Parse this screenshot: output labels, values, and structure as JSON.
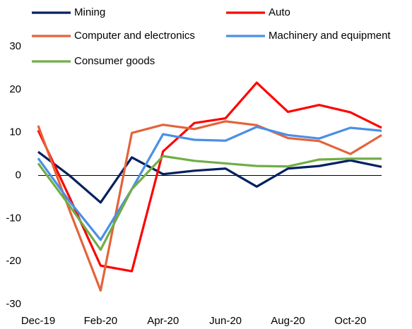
{
  "chart_data": {
    "type": "line",
    "categories": [
      "Dec-19",
      null,
      "Feb-20",
      null,
      "Apr-20",
      null,
      "Jun-20",
      null,
      "Aug-20",
      null,
      "Oct-20",
      null
    ],
    "series": [
      {
        "name": "Mining",
        "color": "#002060",
        "values": [
          5.5,
          0,
          -6.3,
          4.2,
          0.3,
          1.1,
          1.6,
          -2.6,
          1.6,
          2.2,
          3.5,
          2.0
        ]
      },
      {
        "name": "Auto",
        "color": "#ff0000",
        "values": [
          10.5,
          -5,
          -21,
          -22.3,
          5.6,
          12.2,
          13.3,
          21.6,
          14.8,
          16.4,
          14.7,
          11.1
        ]
      },
      {
        "name": "Computer and electronics",
        "color": "#e4633a",
        "values": [
          11.6,
          -8,
          -26.8,
          9.9,
          11.8,
          10.8,
          12.6,
          11.7,
          8.7,
          8.0,
          5.0,
          9.4
        ]
      },
      {
        "name": "Machinery and equipment",
        "color": "#4a8fe6",
        "values": [
          4.0,
          -6,
          -15,
          -3.2,
          9.6,
          8.3,
          8.1,
          11.3,
          9.4,
          8.6,
          11.1,
          10.4
        ]
      },
      {
        "name": "Consumer goods",
        "color": "#70ad47",
        "values": [
          2.8,
          -7,
          -17.3,
          -3.2,
          4.5,
          3.4,
          2.8,
          2.2,
          2.1,
          3.7,
          3.9,
          3.9
        ]
      }
    ],
    "ylim": [
      -30,
      30
    ],
    "yticks": [
      -30,
      -20,
      -10,
      0,
      10,
      20,
      30
    ],
    "grid": false
  }
}
